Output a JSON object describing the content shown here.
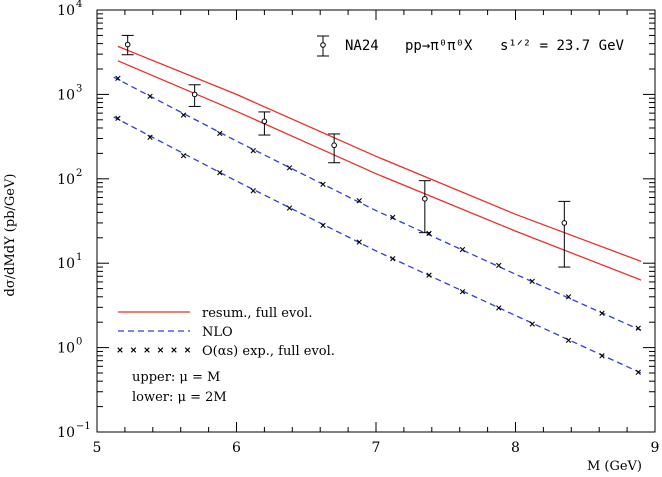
{
  "chart_data": {
    "type": "line",
    "xlabel": "M (GeV)",
    "ylabel": "dσ/dMdY (pb/GeV)",
    "xlim": [
      5,
      9
    ],
    "ylim": [
      0.1,
      10000
    ],
    "yscale": "log",
    "x_ticks": [
      5,
      6,
      7,
      8,
      9
    ],
    "y_ticks": [
      {
        "value": 0.1,
        "base": "10",
        "exp": "−1"
      },
      {
        "value": 1,
        "base": "10",
        "exp": "0"
      },
      {
        "value": 10,
        "base": "10",
        "exp": "1"
      },
      {
        "value": 100,
        "base": "10",
        "exp": "2"
      },
      {
        "value": 1000,
        "base": "10",
        "exp": "3"
      },
      {
        "value": 10000,
        "base": "10",
        "exp": "4"
      }
    ],
    "annotation": {
      "experiment": "NA24",
      "process": "pp→π⁰π⁰X",
      "energy": "s¹ᐟ² = 23.7 GeV"
    },
    "legend": {
      "placement": "bottom-left",
      "entries": [
        {
          "label": "resum., full evol.",
          "style": "solid",
          "color": "#e8312b"
        },
        {
          "label": "NLO",
          "style": "dashed",
          "color": "#2f3fd6"
        },
        {
          "label": "O(αs) exp., full evol.",
          "style": "crosses",
          "color": "#000000"
        }
      ],
      "notes": [
        "upper: μ = M",
        "lower: μ = 2M"
      ]
    },
    "series": [
      {
        "style": "solid",
        "color": "#e8312b",
        "x": [
          5.15,
          6.0,
          7.0,
          8.0,
          8.9
        ],
        "y": [
          3700,
          1000,
          185,
          38,
          10.5
        ]
      },
      {
        "style": "solid",
        "color": "#e8312b",
        "x": [
          5.15,
          6.0,
          7.0,
          8.0,
          8.9
        ],
        "y": [
          2500,
          630,
          115,
          24,
          6.3
        ]
      },
      {
        "style": "dashed",
        "color": "#2f3fd6",
        "x": [
          5.12,
          6.0,
          7.0,
          8.0,
          8.9
        ],
        "y": [
          1600,
          280,
          42,
          7.4,
          1.6
        ]
      },
      {
        "style": "dashed",
        "color": "#2f3fd6",
        "x": [
          5.12,
          6.0,
          7.0,
          8.0,
          8.9
        ],
        "y": [
          540,
          94,
          14,
          2.4,
          0.5
        ]
      },
      {
        "style": "crosses",
        "color": "#000000",
        "x": [
          5.15,
          5.38,
          5.62,
          5.88,
          6.12,
          6.38,
          6.62,
          6.88,
          7.12,
          7.38,
          7.62,
          7.88,
          8.12,
          8.38,
          8.62,
          8.88
        ],
        "y": [
          1550,
          950,
          570,
          345,
          215,
          135,
          86,
          55,
          35,
          22.5,
          14.5,
          9.4,
          6.1,
          4.0,
          2.55,
          1.7
        ]
      },
      {
        "style": "crosses",
        "color": "#000000",
        "x": [
          5.15,
          5.38,
          5.62,
          5.88,
          6.12,
          6.38,
          6.62,
          6.88,
          7.12,
          7.38,
          7.62,
          7.88,
          8.12,
          8.38,
          8.62,
          8.88
        ],
        "y": [
          520,
          310,
          188,
          118,
          72,
          45,
          28,
          17.8,
          11.3,
          7.2,
          4.6,
          2.95,
          1.9,
          1.22,
          0.8,
          0.51
        ]
      }
    ],
    "data_points": {
      "name": "NA24",
      "x": [
        5.22,
        5.7,
        6.2,
        6.7,
        7.35,
        8.35
      ],
      "y": [
        3900,
        1000,
        480,
        250,
        58,
        30
      ],
      "y_low": [
        2950,
        720,
        330,
        155,
        23,
        9
      ],
      "y_high": [
        5000,
        1300,
        620,
        340,
        95,
        54
      ]
    }
  }
}
